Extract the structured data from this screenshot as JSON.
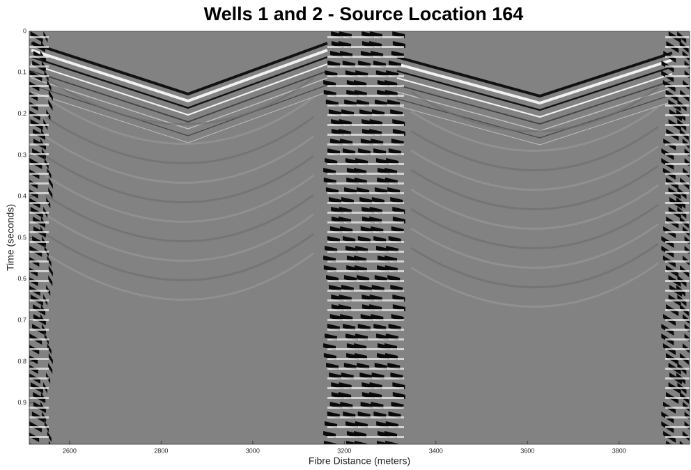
{
  "chart_data": {
    "type": "image",
    "title": "Wells 1 and 2 - Source Location 164",
    "x_label": "Fibre Distance (meters)",
    "y_label": "Time (seconds)",
    "xlim": [
      2512,
      3954
    ],
    "xticks": [
      2600,
      2800,
      3000,
      3200,
      3400,
      3600,
      3800
    ],
    "ylim": [
      1,
      0
    ],
    "yticks": [
      0,
      0.1,
      0.2,
      0.3,
      0.4,
      0.5,
      0.6,
      0.7,
      0.8,
      0.9
    ],
    "colormap": "gray"
  }
}
